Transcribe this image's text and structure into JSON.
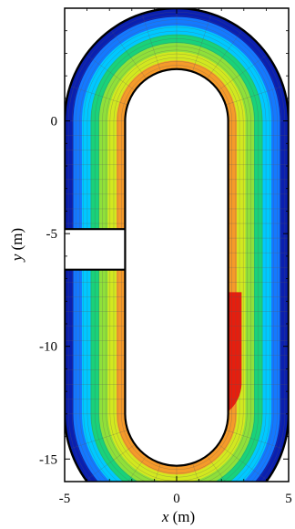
{
  "chart_data": {
    "type": "heatmap",
    "title": "",
    "xlabel": {
      "var": "x",
      "unit": " (m)"
    },
    "ylabel": {
      "var": "y",
      "unit": " (m)"
    },
    "xlim": [
      -5,
      5
    ],
    "ylim": [
      -16,
      5
    ],
    "xticks": [
      -5,
      0,
      5
    ],
    "yticks": [
      0,
      -5,
      -10,
      -15
    ],
    "grid": false,
    "legend": "none",
    "domain": {
      "shape": "racetrack",
      "semicircle_centers": [
        [
          0,
          0
        ],
        [
          0,
          -13
        ]
      ],
      "outer_radius": 5,
      "inner_radius": 2.3,
      "inlet_gap_y": [
        -4.8,
        -6.6
      ],
      "inlet_x_range": [
        -5,
        -2.3
      ]
    },
    "contour_colors": [
      "#0a1fb0",
      "#1479ff",
      "#00c8ff",
      "#19d27a",
      "#8fe03a",
      "#d2e820",
      "#f59a2a",
      "#e61e0e"
    ],
    "outline_color": "#000000",
    "mesh_color": "#5a5a5a"
  }
}
